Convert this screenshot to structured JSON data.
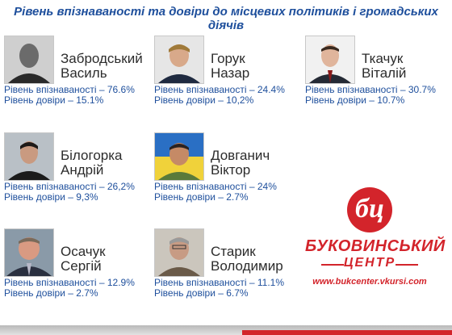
{
  "title": "Рівень впізнаваності та довіри до місцевих політиків і громадських діячів",
  "people": [
    {
      "surname": "Забродський",
      "given": "Василь",
      "recognition": "Рівень впізнаваності – 76.6%",
      "trust": "Рівень довіри – 15.1%"
    },
    {
      "surname": "Горук",
      "given": "Назар",
      "recognition": "Рівень впізнаваності – 24.4%",
      "trust": "Рівень довіри – 10,2%"
    },
    {
      "surname": "Ткачук",
      "given": "Віталій",
      "recognition": "Рівень впізнаваності – 30.7%",
      "trust": "Рівень довіри – 10.7%"
    },
    {
      "surname": "Білогорка",
      "given": "Андрій",
      "recognition": "Рівень впізнаваності – 26,2%",
      "trust": "Рівень довіри – 9,3%"
    },
    {
      "surname": "Довганич",
      "given": "Віктор",
      "recognition": "Рівень впізнаваності – 24%",
      "trust": "Рівень довіри – 2.7%"
    },
    {
      "surname": "Осачук",
      "given": "Сергій",
      "recognition": "Рівень впізнаваності – 12.9%",
      "trust": "Рівень довіри – 2.7%"
    },
    {
      "surname": "Старик",
      "given": "Володимир",
      "recognition": "Рівень впізнаваності – 11.1%",
      "trust": "Рівень довіри – 6.7%"
    }
  ],
  "logo": {
    "mark": "бц",
    "line1": "БУКОВИНСЬКИЙ",
    "line2": "ЦЕНТР",
    "url": "www.bukcenter.vkursi.com"
  },
  "colors": {
    "accent": "#1e4f9c",
    "brand": "#d3242b"
  }
}
